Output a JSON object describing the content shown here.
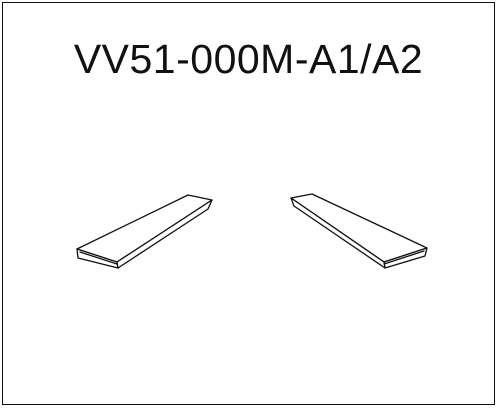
{
  "drawing": {
    "part_number": "VV51-000M-A1/A2"
  },
  "colors": {
    "line": "#111111",
    "background": "#ffffff"
  }
}
